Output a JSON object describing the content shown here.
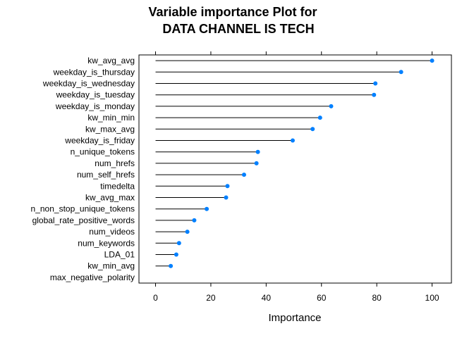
{
  "chart_data": {
    "type": "dot",
    "title_line1": "Variable importance Plot for",
    "title_line2": "DATA CHANNEL IS TECH",
    "xlabel": "Importance",
    "ylabel": "",
    "xlim": [
      -6,
      107
    ],
    "xticks": [
      "0",
      "20",
      "40",
      "60",
      "80",
      "100"
    ],
    "xtick_values": [
      0,
      20,
      40,
      60,
      80,
      100
    ],
    "grid": false,
    "point_color": "#0080ff",
    "categories": [
      "kw_avg_avg",
      "weekday_is_thursday",
      "weekday_is_wednesday",
      "weekday_is_tuesday",
      "weekday_is_monday",
      "kw_min_min",
      "kw_max_avg",
      "weekday_is_friday",
      "n_unique_tokens",
      "num_hrefs",
      "num_self_hrefs",
      "timedelta",
      "kw_avg_max",
      "n_non_stop_unique_tokens",
      "global_rate_positive_words",
      "num_videos",
      "num_keywords",
      "LDA_01",
      "kw_min_avg",
      "max_negative_polarity"
    ],
    "values": [
      100,
      88.8,
      79.5,
      79.0,
      63.5,
      59.5,
      56.8,
      49.6,
      37.0,
      36.5,
      32.0,
      26.0,
      25.5,
      18.5,
      14.0,
      11.5,
      8.5,
      7.5,
      5.5,
      0
    ]
  }
}
